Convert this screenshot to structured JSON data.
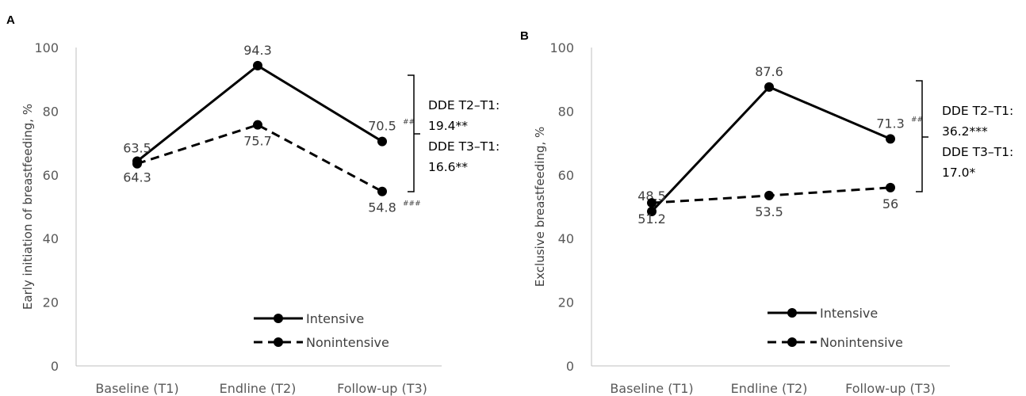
{
  "chart_data": [
    {
      "panel": "A",
      "type": "line",
      "ylabel": "Early initiation of breastfeeding, %",
      "ylim": [
        0,
        100
      ],
      "yticks": [
        "0",
        "20",
        "40",
        "60",
        "80",
        "100"
      ],
      "categories": [
        "Baseline (T1)",
        "Endline (T2)",
        "Follow-up (T3)"
      ],
      "series": [
        {
          "name": "Intensive",
          "values": [
            64.3,
            94.3,
            70.5
          ],
          "style": "solid",
          "labels": [
            "64.3",
            "94.3",
            "70.5"
          ],
          "label_pos": [
            "below",
            "above",
            "above"
          ],
          "suffix": [
            "",
            "",
            "##"
          ]
        },
        {
          "name": "Nonintensive",
          "values": [
            63.5,
            75.7,
            54.8
          ],
          "style": "dashed",
          "labels": [
            "63.5",
            "75.7",
            "54.8"
          ],
          "label_pos": [
            "above",
            "below",
            "below"
          ],
          "suffix": [
            "",
            "",
            "###"
          ]
        }
      ],
      "annotation": [
        "DDE T2–T1:",
        "19.4**",
        "DDE T3–T1:",
        "16.6**"
      ],
      "legend_position": "bottom-right",
      "grid": false
    },
    {
      "panel": "B",
      "type": "line",
      "ylabel": "Exclusive breastfeeding, %",
      "ylim": [
        0,
        100
      ],
      "yticks": [
        "0",
        "20",
        "40",
        "60",
        "80",
        "100"
      ],
      "categories": [
        "Baseline (T1)",
        "Endline (T2)",
        "Follow-up (T3)"
      ],
      "series": [
        {
          "name": "Intensive",
          "values": [
            48.5,
            87.6,
            71.3
          ],
          "style": "solid",
          "labels": [
            "48.5",
            "87.6",
            "71.3"
          ],
          "label_pos": [
            "above",
            "above",
            "above"
          ],
          "suffix": [
            "",
            "",
            "##"
          ]
        },
        {
          "name": "Nonintensive",
          "values": [
            51.2,
            53.5,
            56
          ],
          "style": "dashed",
          "labels": [
            "51.2",
            "53.5",
            "56"
          ],
          "label_pos": [
            "below",
            "below",
            "below"
          ],
          "suffix": [
            "",
            "",
            ""
          ]
        }
      ],
      "annotation": [
        "DDE T2–T1:",
        "36.2***",
        "DDE T3–T1:",
        "17.0*"
      ],
      "legend_position": "bottom-right",
      "grid": false
    }
  ],
  "colors": {
    "line": "#000000",
    "axis": "#bfbfbf",
    "text": "#404040"
  }
}
